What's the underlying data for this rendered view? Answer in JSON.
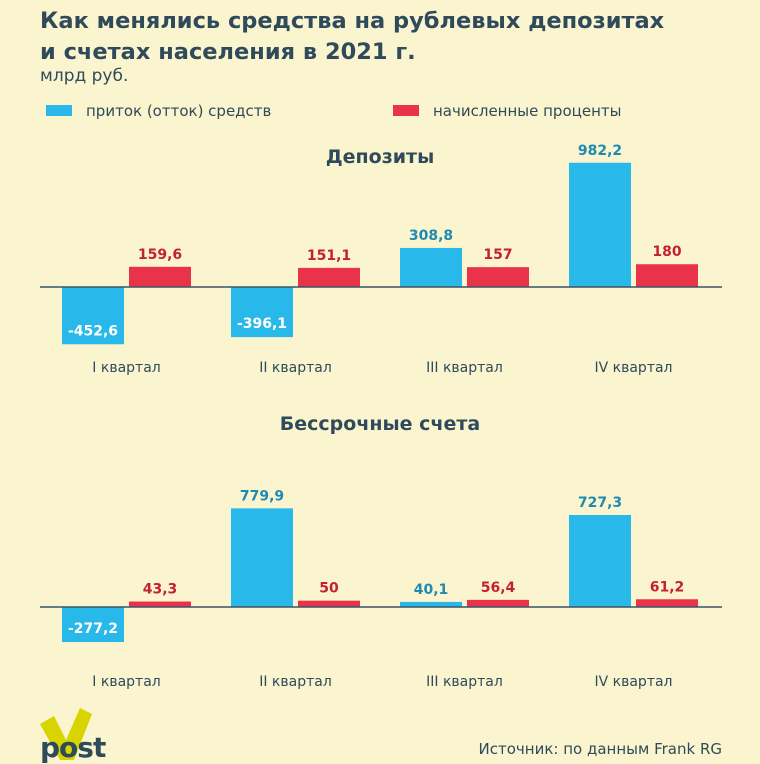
{
  "title": {
    "line1": "Как менялись средства на рублевых депозитах",
    "line2": "и счетах населения в 2021 г."
  },
  "unit": "млрд руб.",
  "legend": {
    "inflow": "приток (отток) средств",
    "interest": "начисленные проценты"
  },
  "colors": {
    "inflow": "#29b8ea",
    "interest": "#e8334a",
    "background": "#fbf5cf",
    "text": "#2f4a5a",
    "baseline": "#3a5566",
    "logo": "#d7d400"
  },
  "chart_data": [
    {
      "type": "bar",
      "title": "Депозиты",
      "categories": [
        "I квартал",
        "II квартал",
        "III квартал",
        "IV квартал"
      ],
      "series": [
        {
          "name": "приток (отток) средств",
          "values": [
            -452.6,
            -396.1,
            308.8,
            982.2
          ],
          "labels": [
            "-452,6",
            "-396,1",
            "308,8",
            "982,2"
          ]
        },
        {
          "name": "начисленные проценты",
          "values": [
            159.6,
            151.1,
            157,
            180
          ],
          "labels": [
            "159,6",
            "151,1",
            "157",
            "180"
          ]
        }
      ]
    },
    {
      "type": "bar",
      "title": "Бессрочные счета",
      "categories": [
        "I квартал",
        "II квартал",
        "III квартал",
        "IV квартал"
      ],
      "series": [
        {
          "name": "приток (отток) средств",
          "values": [
            -277.2,
            779.9,
            40.1,
            727.3
          ],
          "labels": [
            "-277,2",
            "779,9",
            "40,1",
            "727,3"
          ]
        },
        {
          "name": "начисленные проценты",
          "values": [
            43.3,
            50,
            56.4,
            61.2
          ],
          "labels": [
            "43,3",
            "50",
            "56,4",
            "61,2"
          ]
        }
      ]
    }
  ],
  "source": "Источник: по данным Frank RG",
  "logo": {
    "name": "post"
  }
}
